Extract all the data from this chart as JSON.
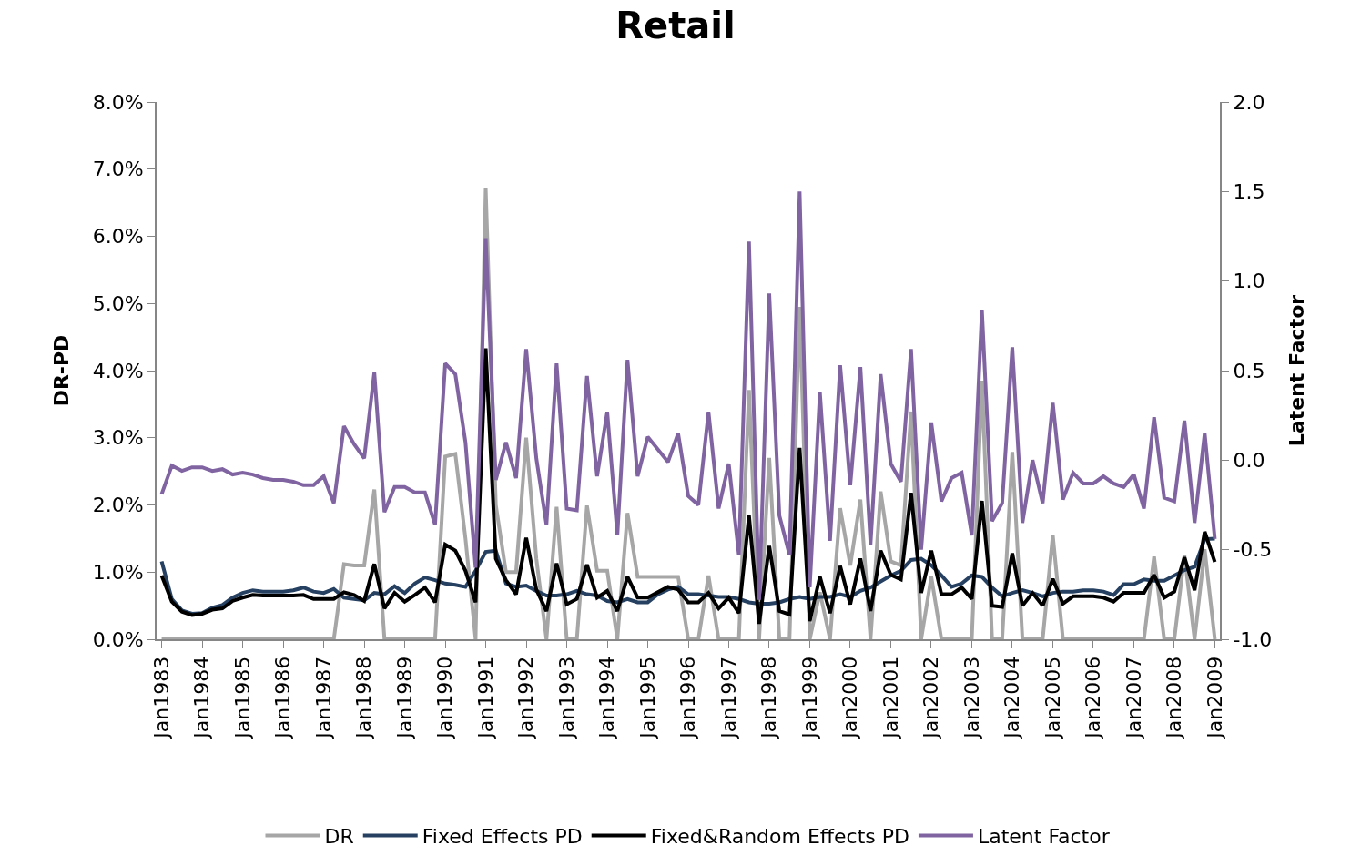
{
  "chart_data": {
    "type": "line",
    "title": "Retail",
    "ylabel": "DR-PD",
    "y2label": "Latent Factor",
    "categories": [
      "Jan1983",
      null,
      null,
      null,
      "Jan1984",
      null,
      null,
      null,
      "Jan1985",
      null,
      null,
      null,
      "Jan1986",
      null,
      null,
      null,
      "Jan1987",
      null,
      null,
      null,
      "Jan1988",
      null,
      null,
      null,
      "Jan1989",
      null,
      null,
      null,
      "Jan1990",
      null,
      null,
      null,
      "Jan1991",
      null,
      null,
      null,
      "Jan1992",
      null,
      null,
      null,
      "Jan1993",
      null,
      null,
      null,
      "Jan1994",
      null,
      null,
      null,
      "Jan1995",
      null,
      null,
      null,
      "Jan1996",
      null,
      null,
      null,
      "Jan1997",
      null,
      null,
      null,
      "Jan1998",
      null,
      null,
      null,
      "Jan1999",
      null,
      null,
      null,
      "Jan2000",
      null,
      null,
      null,
      "Jan2001",
      null,
      null,
      null,
      "Jan2002",
      null,
      null,
      null,
      "Jan2003",
      null,
      null,
      null,
      "Jan2004",
      null,
      null,
      null,
      "Jan2005",
      null,
      null,
      null,
      "Jan2006",
      null,
      null,
      null,
      "Jan2007",
      null,
      null,
      null,
      "Jan2008",
      null,
      null,
      null,
      "Jan2009"
    ],
    "series": [
      {
        "name": "DR",
        "color": "#a6a6a6",
        "values": [
          0,
          0,
          0,
          0,
          0,
          0,
          0,
          0,
          0,
          0,
          0,
          0,
          0,
          0,
          0,
          0,
          0,
          0,
          1.12,
          1.1,
          1.1,
          2.23,
          0,
          0,
          0,
          0,
          0,
          0,
          2.72,
          2.76,
          1.5,
          0,
          6.72,
          2.0,
          1.0,
          1.0,
          3.0,
          1.2,
          0,
          1.97,
          0,
          0,
          1.99,
          1.02,
          1.02,
          0,
          1.88,
          0.93,
          0.93,
          0.93,
          0.93,
          0.93,
          0,
          0,
          0.95,
          0,
          0,
          0,
          3.71,
          0,
          2.7,
          0,
          0,
          4.95,
          0,
          0.7,
          0,
          1.95,
          1.1,
          2.08,
          0,
          2.2,
          1.16,
          1.1,
          3.39,
          0,
          0.93,
          0,
          0,
          0,
          0,
          3.85,
          0,
          0,
          2.79,
          0,
          0,
          0,
          1.55,
          0,
          0,
          0,
          0,
          0,
          0,
          0,
          0,
          0,
          1.23,
          0,
          0,
          1.25,
          0,
          1.34,
          0
        ]
      },
      {
        "name": "Fixed Effects PD",
        "color": "#254061",
        "values": [
          1.16,
          0.6,
          0.43,
          0.38,
          0.39,
          0.47,
          0.51,
          0.62,
          0.69,
          0.73,
          0.71,
          0.71,
          0.71,
          0.73,
          0.77,
          0.71,
          0.69,
          0.75,
          0.62,
          0.6,
          0.58,
          0.69,
          0.67,
          0.79,
          0.69,
          0.83,
          0.92,
          0.88,
          0.83,
          0.81,
          0.78,
          1.02,
          1.3,
          1.32,
          0.83,
          0.78,
          0.8,
          0.72,
          0.65,
          0.65,
          0.67,
          0.72,
          0.67,
          0.65,
          0.57,
          0.55,
          0.6,
          0.55,
          0.55,
          0.67,
          0.74,
          0.78,
          0.67,
          0.67,
          0.65,
          0.63,
          0.63,
          0.6,
          0.55,
          0.53,
          0.53,
          0.55,
          0.6,
          0.63,
          0.6,
          0.63,
          0.63,
          0.67,
          0.63,
          0.72,
          0.77,
          0.86,
          0.95,
          1.02,
          1.18,
          1.2,
          1.1,
          0.95,
          0.78,
          0.83,
          0.95,
          0.93,
          0.77,
          0.64,
          0.69,
          0.73,
          0.69,
          0.64,
          0.69,
          0.71,
          0.71,
          0.73,
          0.73,
          0.71,
          0.66,
          0.82,
          0.82,
          0.89,
          0.87,
          0.87,
          0.95,
          1.03,
          1.08,
          1.49,
          1.5
        ]
      },
      {
        "name": "Fixed&Random Effects PD",
        "color": "#000000",
        "values": [
          0.95,
          0.56,
          0.41,
          0.36,
          0.38,
          0.44,
          0.46,
          0.57,
          0.62,
          0.66,
          0.65,
          0.65,
          0.65,
          0.65,
          0.66,
          0.6,
          0.6,
          0.6,
          0.7,
          0.66,
          0.57,
          1.12,
          0.46,
          0.69,
          0.56,
          0.66,
          0.77,
          0.55,
          1.41,
          1.32,
          1.02,
          0.55,
          4.33,
          1.2,
          0.88,
          0.67,
          1.51,
          0.74,
          0.42,
          1.13,
          0.52,
          0.6,
          1.11,
          0.62,
          0.72,
          0.42,
          0.93,
          0.62,
          0.62,
          0.7,
          0.78,
          0.74,
          0.55,
          0.55,
          0.69,
          0.46,
          0.62,
          0.39,
          1.84,
          0.23,
          1.39,
          0.42,
          0.37,
          2.85,
          0.27,
          0.93,
          0.39,
          1.09,
          0.52,
          1.2,
          0.42,
          1.32,
          0.96,
          0.89,
          2.18,
          0.69,
          1.32,
          0.67,
          0.67,
          0.77,
          0.6,
          2.06,
          0.5,
          0.48,
          1.28,
          0.5,
          0.69,
          0.5,
          0.9,
          0.53,
          0.64,
          0.64,
          0.64,
          0.62,
          0.56,
          0.69,
          0.69,
          0.69,
          0.96,
          0.62,
          0.71,
          1.22,
          0.73,
          1.6,
          1.15
        ]
      },
      {
        "name": "Latent Factor",
        "color": "#8064a2",
        "axis": "y2",
        "values": [
          -0.19,
          -0.03,
          -0.06,
          -0.04,
          -0.04,
          -0.06,
          -0.05,
          -0.08,
          -0.07,
          -0.08,
          -0.1,
          -0.11,
          -0.11,
          -0.12,
          -0.14,
          -0.14,
          -0.09,
          -0.24,
          0.19,
          0.09,
          0.01,
          0.49,
          -0.29,
          -0.15,
          -0.15,
          -0.18,
          -0.18,
          -0.36,
          0.54,
          0.48,
          0.1,
          -0.6,
          1.24,
          -0.11,
          0.1,
          -0.1,
          0.62,
          0.01,
          -0.36,
          0.54,
          -0.27,
          -0.28,
          0.47,
          -0.09,
          0.27,
          -0.42,
          0.56,
          -0.09,
          0.13,
          0.06,
          -0.01,
          0.15,
          -0.2,
          -0.25,
          0.27,
          -0.27,
          -0.02,
          -0.53,
          1.22,
          -0.78,
          0.93,
          -0.31,
          -0.53,
          1.5,
          -0.71,
          0.38,
          -0.45,
          0.53,
          -0.14,
          0.52,
          -0.47,
          0.48,
          -0.02,
          -0.12,
          0.62,
          -0.5,
          0.21,
          -0.23,
          -0.1,
          -0.07,
          -0.42,
          0.84,
          -0.34,
          -0.24,
          0.63,
          -0.35,
          0.0,
          -0.24,
          0.32,
          -0.22,
          -0.07,
          -0.13,
          -0.13,
          -0.09,
          -0.13,
          -0.15,
          -0.08,
          -0.27,
          0.24,
          -0.21,
          -0.23,
          0.22,
          -0.35,
          0.15,
          -0.44
        ]
      }
    ],
    "ylim": [
      0,
      8
    ],
    "yticks": [
      {
        "value": 0,
        "label": "0.0%"
      },
      {
        "value": 1,
        "label": "1.0%"
      },
      {
        "value": 2,
        "label": "2.0%"
      },
      {
        "value": 3,
        "label": "3.0%"
      },
      {
        "value": 4,
        "label": "4.0%"
      },
      {
        "value": 5,
        "label": "5.0%"
      },
      {
        "value": 6,
        "label": "6.0%"
      },
      {
        "value": 7,
        "label": "7.0%"
      },
      {
        "value": 8,
        "label": "8.0%"
      }
    ],
    "y2lim": [
      -1,
      2
    ],
    "y2ticks": [
      {
        "value": -1,
        "label": "-1.0"
      },
      {
        "value": -0.5,
        "label": "-0.5"
      },
      {
        "value": 0,
        "label": "0.0"
      },
      {
        "value": 0.5,
        "label": "0.5"
      },
      {
        "value": 1,
        "label": "1.0"
      },
      {
        "value": 1.5,
        "label": "1.5"
      },
      {
        "value": 2,
        "label": "2.0"
      }
    ],
    "legend": "bottom",
    "line_style": "solid"
  }
}
